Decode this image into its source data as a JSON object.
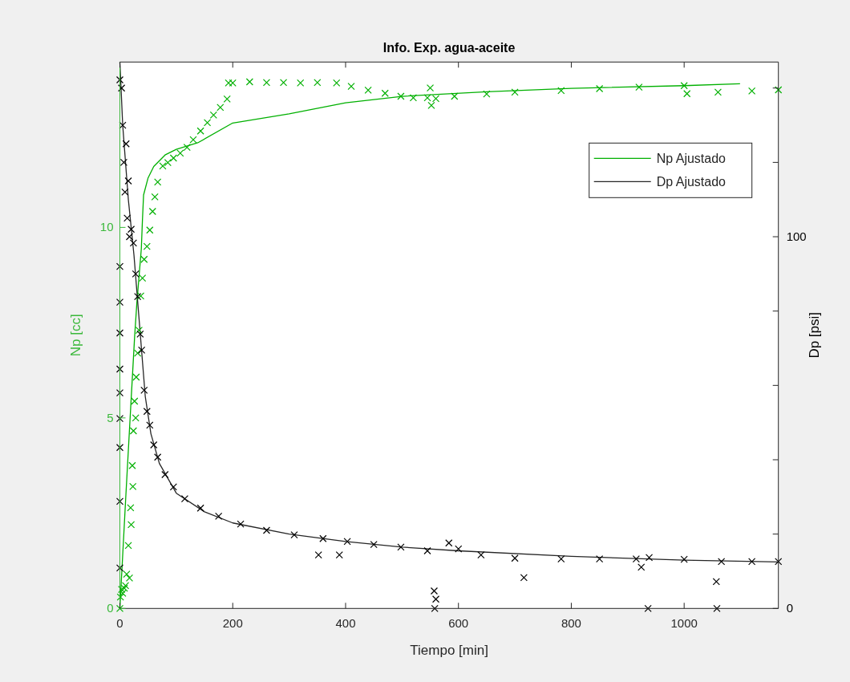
{
  "chart_data": {
    "type": "scatter",
    "title": "Info. Exp. agua-aceite",
    "xlabel": "Tiempo [min]",
    "ylabel": "Np [cc]",
    "y2label": "Dp [psi]",
    "xlim": [
      0,
      1167
    ],
    "xticks": [
      0,
      200,
      400,
      600,
      800,
      1000
    ],
    "ylim": [
      0,
      14.34
    ],
    "yticks": [
      0,
      5,
      10
    ],
    "y2lim": [
      0,
      147
    ],
    "y2ticks": [
      0,
      {
        "value": 20,
        "label": null
      },
      {
        "value": 40,
        "label": null
      },
      {
        "value": 60,
        "label": null
      },
      {
        "value": 80,
        "label": null
      },
      100,
      {
        "value": 120,
        "label": null
      },
      {
        "value": 140,
        "label": null
      }
    ],
    "grid": false,
    "legend": "top right",
    "series": [
      {
        "marker": "cross",
        "color": "#00b000",
        "x": [
          0,
          1,
          3,
          5,
          8,
          10,
          12,
          15,
          17,
          19,
          20,
          22,
          23,
          24,
          26,
          28,
          29,
          31.5,
          34,
          37,
          40,
          43,
          48,
          53,
          58,
          62,
          67,
          76,
          85,
          95,
          107,
          119,
          130,
          143,
          155,
          166,
          178,
          190,
          192.5,
          200,
          230,
          260,
          290,
          320,
          350,
          384,
          410,
          440,
          470,
          498,
          520,
          545,
          550,
          552,
          560,
          593,
          650,
          700,
          782,
          850,
          920,
          1000,
          1005,
          1060,
          1120,
          1167
        ],
        "values": [
          0,
          0.3,
          0.5,
          0.4,
          0.53,
          0.6,
          0.9,
          1.65,
          0.8,
          2.64,
          2.2,
          3.75,
          3.2,
          4.66,
          5.44,
          5.0,
          6.07,
          6.7,
          7.3,
          8.2,
          8.67,
          9.16,
          9.5,
          9.93,
          10.42,
          10.8,
          11.19,
          11.61,
          11.7,
          11.82,
          11.95,
          12.1,
          12.3,
          12.53,
          12.75,
          12.95,
          13.15,
          13.37,
          13.79,
          13.79,
          13.82,
          13.8,
          13.8,
          13.79,
          13.8,
          13.79,
          13.7,
          13.6,
          13.52,
          13.44,
          13.4,
          13.4,
          13.66,
          13.2,
          13.38,
          13.44,
          13.5,
          13.55,
          13.59,
          13.64,
          13.68,
          13.72,
          13.51,
          13.55,
          13.58,
          13.61
        ]
      },
      {
        "type": "line",
        "name": "Np Ajustado",
        "marker": "none",
        "line_style": "solid",
        "color": "#00b000",
        "x": [
          0,
          10,
          20,
          26,
          30,
          38,
          40,
          42,
          50,
          60,
          80,
          100,
          138,
          200,
          300,
          400,
          500,
          650,
          800,
          1000,
          1099
        ],
        "values": [
          0,
          2.8,
          5.5,
          7.1,
          8.0,
          9.44,
          10.2,
          10.85,
          11.3,
          11.6,
          11.9,
          12.05,
          12.22,
          12.74,
          12.98,
          13.27,
          13.44,
          13.56,
          13.65,
          13.72,
          13.77
        ]
      },
      {
        "axis": "y2",
        "marker": "cross",
        "color": "#000000",
        "x": [
          0,
          0,
          0,
          0,
          0,
          0,
          0,
          0,
          0,
          0,
          3,
          5,
          7,
          9,
          11,
          13,
          15,
          17,
          20,
          24,
          28,
          31.5,
          36,
          38.6,
          43,
          48,
          53,
          60,
          67,
          80,
          95,
          115,
          143,
          175,
          214,
          260,
          309,
          352,
          360,
          389,
          403,
          450,
          498,
          545,
          557,
          558,
          560,
          583,
          600,
          640,
          700,
          716,
          782,
          850,
          915,
          924,
          936,
          938,
          1000,
          1057,
          1058,
          1066,
          1120,
          1167
        ],
        "values": [
          10.9,
          28.8,
          43.3,
          51.1,
          58,
          64.4,
          74.1,
          82.4,
          92,
          142.2,
          140,
          130,
          120,
          112,
          125,
          105,
          115,
          100,
          102,
          98.3,
          90,
          83.9,
          73.8,
          69.5,
          58.7,
          53,
          49.3,
          44,
          40.7,
          36,
          32.7,
          29.5,
          27,
          24.8,
          22.7,
          21,
          19.8,
          14.4,
          18.8,
          14.4,
          18,
          17.2,
          16.5,
          15.5,
          4.7,
          0,
          2.5,
          17.6,
          16,
          14.4,
          13.5,
          8.3,
          13.3,
          13.3,
          13.3,
          11.1,
          0,
          13.7,
          13.2,
          7.2,
          0,
          12.6,
          12.6,
          12.6
        ]
      },
      {
        "type": "line",
        "axis": "y2",
        "name": "Dp Ajustado",
        "marker": "none",
        "line_style": "solid",
        "color": "#262626",
        "x": [
          0,
          5,
          15,
          25,
          35,
          45,
          55,
          70,
          100,
          150,
          200,
          300,
          400,
          500,
          600,
          800,
          1000,
          1167
        ],
        "values": [
          147,
          130,
          110,
          95,
          76,
          57,
          47,
          39,
          31,
          26,
          23,
          20,
          18,
          16.5,
          15.5,
          14,
          13,
          12.5
        ]
      }
    ]
  }
}
